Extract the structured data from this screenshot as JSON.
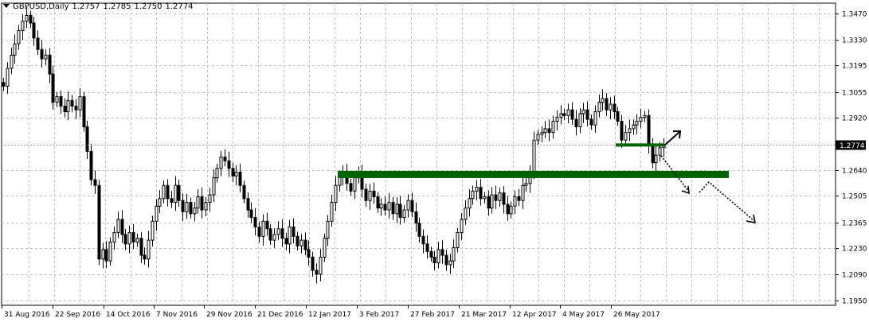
{
  "header": {
    "symbol": "GBPUSD,Daily",
    "open": "1.2757",
    "high": "1.2785",
    "low": "1.2750",
    "close": "1.2774"
  },
  "colors": {
    "background": "#ffffff",
    "grid": "#c0c0c0",
    "candle": "#000000",
    "zone": "#006400",
    "current_price_line": "#a0a0a0",
    "price_tag_bg": "#000000"
  },
  "icons": {
    "header_menu": "triangle-down-icon",
    "up_projection": "arrow-up-right-icon",
    "down_projection": "dotted-arrow-down-icon"
  },
  "chart_data": {
    "type": "candlestick",
    "title": "GBPUSD,Daily",
    "timeframe": "Daily",
    "grid": true,
    "y_axis_position": "right",
    "ylim": [
      1.1925,
      1.3525
    ],
    "y_ticks": [
      "1.3470",
      "1.3330",
      "1.3195",
      "1.3055",
      "1.2920",
      "1.2640",
      "1.2505",
      "1.2365",
      "1.2230",
      "1.2090",
      "1.1950"
    ],
    "x_ticks": [
      "31 Aug 2016",
      "22 Sep 2016",
      "14 Oct 2016",
      "7 Nov 2016",
      "29 Nov 2016",
      "21 Dec 2016",
      "12 Jan 2017",
      "3 Feb 2017",
      "27 Feb 2017",
      "21 Mar 2017",
      "12 Apr 2017",
      "4 May 2017",
      "26 May 2017"
    ],
    "current_price": "1.2774",
    "series": [
      {
        "close": [
          1.3085,
          1.318,
          1.325,
          1.331,
          1.338,
          1.343,
          1.346,
          1.342,
          1.334,
          1.328,
          1.323,
          1.325,
          1.315,
          1.3,
          1.303,
          1.298,
          1.295,
          1.301,
          1.298,
          1.296,
          1.303,
          1.287,
          1.274,
          1.259,
          1.256,
          1.217,
          1.222,
          1.216,
          1.226,
          1.231,
          1.238,
          1.23,
          1.225,
          1.231,
          1.226,
          1.228,
          1.219,
          1.217,
          1.227,
          1.237,
          1.245,
          1.249,
          1.256,
          1.249,
          1.247,
          1.256,
          1.248,
          1.242,
          1.247,
          1.241,
          1.244,
          1.25,
          1.243,
          1.247,
          1.251,
          1.26,
          1.265,
          1.271,
          1.269,
          1.265,
          1.261,
          1.263,
          1.256,
          1.249,
          1.243,
          1.239,
          1.234,
          1.229,
          1.237,
          1.233,
          1.227,
          1.23,
          1.233,
          1.228,
          1.225,
          1.234,
          1.229,
          1.224,
          1.227,
          1.222,
          1.218,
          1.211,
          1.209,
          1.218,
          1.228,
          1.237,
          1.247,
          1.256,
          1.261,
          1.263,
          1.257,
          1.253,
          1.26,
          1.262,
          1.254,
          1.248,
          1.253,
          1.25,
          1.244,
          1.246,
          1.243,
          1.247,
          1.241,
          1.246,
          1.239,
          1.243,
          1.248,
          1.242,
          1.236,
          1.229,
          1.225,
          1.221,
          1.218,
          1.215,
          1.222,
          1.219,
          1.214,
          1.216,
          1.223,
          1.231,
          1.238,
          1.244,
          1.249,
          1.253,
          1.255,
          1.249,
          1.25,
          1.244,
          1.251,
          1.248,
          1.252,
          1.246,
          1.241,
          1.245,
          1.25,
          1.248,
          1.256,
          1.257,
          1.263,
          1.28,
          1.283,
          1.284,
          1.286,
          1.284,
          1.29,
          1.292,
          1.294,
          1.293,
          1.296,
          1.291,
          1.287,
          1.294,
          1.296,
          1.291,
          1.288,
          1.295,
          1.3,
          1.302,
          1.296,
          1.299,
          1.295,
          1.29,
          1.28,
          1.284,
          1.286,
          1.288,
          1.29,
          1.292,
          1.293,
          1.277,
          1.268,
          1.272,
          1.276,
          1.2774
        ]
      }
    ],
    "annotations": [
      {
        "type": "support-zone",
        "price": 1.262
      },
      {
        "type": "resistance-segment",
        "price": 1.2774
      },
      {
        "type": "projection-up",
        "direction": "up"
      },
      {
        "type": "projection-down",
        "direction": "down"
      }
    ]
  }
}
